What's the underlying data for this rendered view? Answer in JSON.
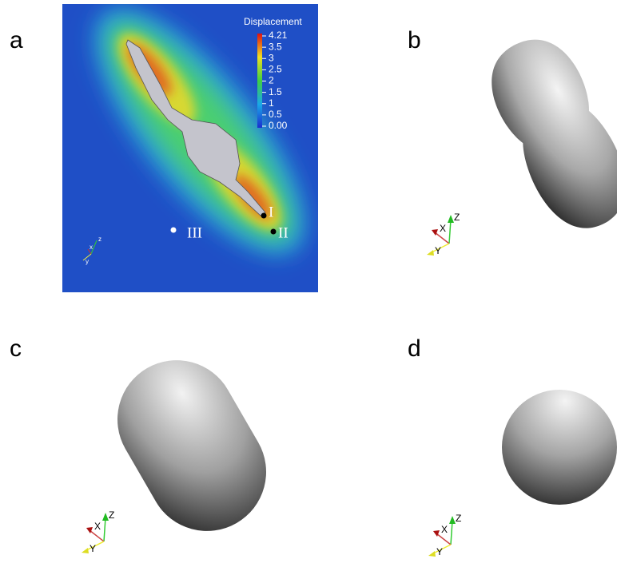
{
  "panels": [
    {
      "label": "a",
      "colorbar": {
        "title": "Displacement",
        "labels": [
          "4.21",
          "3.5",
          "3",
          "2.5",
          "2",
          "1.5",
          "1",
          "0.5",
          "0.00"
        ]
      },
      "points": [
        "I",
        "II",
        "III"
      ],
      "axes": [
        "z",
        "x",
        "y"
      ]
    },
    {
      "label": "b",
      "axes": [
        "Z",
        "X",
        "Y"
      ]
    },
    {
      "label": "c",
      "axes": [
        "Z",
        "X",
        "Y"
      ]
    },
    {
      "label": "d",
      "axes": [
        "Z",
        "X",
        "Y"
      ]
    }
  ]
}
